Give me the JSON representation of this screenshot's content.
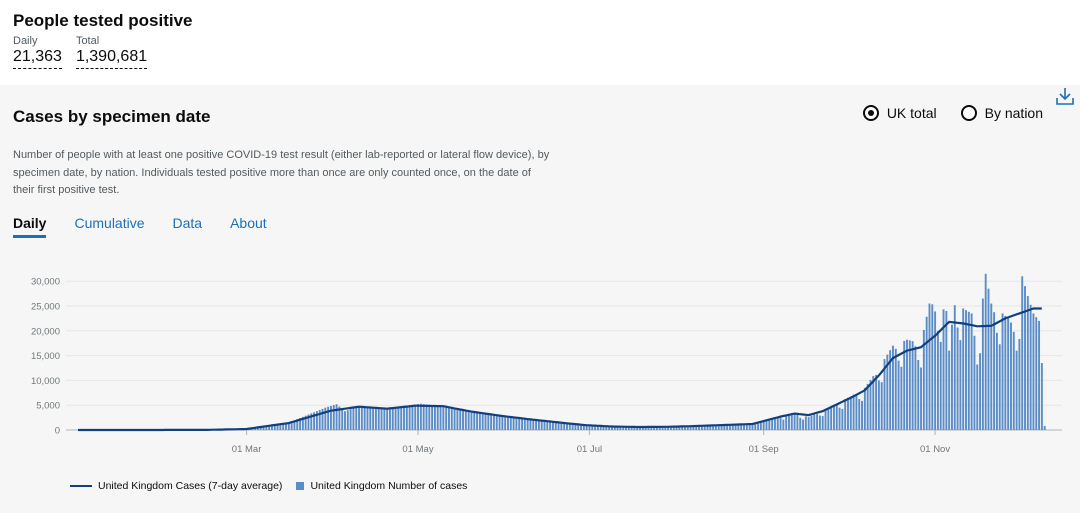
{
  "headline": {
    "title": "People tested positive",
    "daily_label": "Daily",
    "daily_value": "21,363",
    "total_label": "Total",
    "total_value": "1,390,681"
  },
  "card": {
    "title": "Cases by specimen date",
    "download_icon": "download-icon",
    "radio_uk": "UK total",
    "radio_nation": "By nation",
    "selected_radio": "UK total",
    "description": "Number of people with at least one positive COVID-19 test result (either lab-reported or lateral flow device), by specimen date, by nation. Individuals tested positive more than once are only counted once, on the date of their first positive test.",
    "tabs": [
      "Daily",
      "Cumulative",
      "Data",
      "About"
    ],
    "active_tab": "Daily"
  },
  "chart_data": {
    "type": "bar",
    "x_start": "2020-01-01",
    "x_ticks": [
      "01 Mar",
      "01 May",
      "01 Jul",
      "01 Sep",
      "01 Nov"
    ],
    "y_ticks": [
      "0",
      "5,000",
      "10,000",
      "15,000",
      "20,000",
      "25,000",
      "30,000"
    ],
    "ylim": [
      0,
      32000
    ],
    "bar_color": "#5a8cc7",
    "line_color": "#12407f",
    "legend": [
      "United Kingdom Cases (7-day average)",
      "United Kingdom Number of cases"
    ],
    "legend_position": "bottom-left",
    "avg_keypoints": [
      [
        0,
        0
      ],
      [
        45,
        15
      ],
      [
        60,
        200
      ],
      [
        75,
        1400
      ],
      [
        90,
        3900
      ],
      [
        100,
        4700
      ],
      [
        110,
        4300
      ],
      [
        120,
        4900
      ],
      [
        130,
        4800
      ],
      [
        140,
        3700
      ],
      [
        150,
        2900
      ],
      [
        160,
        2200
      ],
      [
        170,
        1600
      ],
      [
        180,
        1000
      ],
      [
        190,
        700
      ],
      [
        200,
        600
      ],
      [
        210,
        650
      ],
      [
        220,
        800
      ],
      [
        230,
        1000
      ],
      [
        240,
        1200
      ],
      [
        250,
        2700
      ],
      [
        255,
        3300
      ],
      [
        260,
        3000
      ],
      [
        265,
        3800
      ],
      [
        275,
        6500
      ],
      [
        280,
        8000
      ],
      [
        285,
        11000
      ],
      [
        290,
        14500
      ],
      [
        295,
        16000
      ],
      [
        300,
        16700
      ],
      [
        305,
        19000
      ],
      [
        310,
        21800
      ],
      [
        315,
        21500
      ],
      [
        320,
        20900
      ],
      [
        325,
        21000
      ],
      [
        330,
        22500
      ],
      [
        335,
        23500
      ],
      [
        340,
        24500
      ],
      [
        343,
        24500
      ]
    ],
    "bar_keypoints": [
      [
        0,
        0
      ],
      [
        45,
        20
      ],
      [
        60,
        200
      ],
      [
        75,
        1500
      ],
      [
        88,
        4500
      ],
      [
        92,
        5200
      ],
      [
        95,
        3800
      ],
      [
        100,
        4800
      ],
      [
        110,
        4500
      ],
      [
        118,
        5000
      ],
      [
        122,
        5300
      ],
      [
        130,
        4700
      ],
      [
        140,
        3500
      ],
      [
        150,
        2800
      ],
      [
        160,
        2100
      ],
      [
        170,
        1500
      ],
      [
        180,
        900
      ],
      [
        190,
        650
      ],
      [
        200,
        550
      ],
      [
        210,
        600
      ],
      [
        220,
        800
      ],
      [
        230,
        1050
      ],
      [
        240,
        1200
      ],
      [
        250,
        2800
      ],
      [
        255,
        3400
      ],
      [
        260,
        2600
      ],
      [
        265,
        3900
      ],
      [
        275,
        6800
      ],
      [
        280,
        8500
      ],
      [
        285,
        12500
      ],
      [
        290,
        17000
      ],
      [
        295,
        18200
      ],
      [
        300,
        17500
      ],
      [
        303,
        25500
      ],
      [
        306,
        25000
      ],
      [
        309,
        24000
      ],
      [
        310,
        16000
      ],
      [
        312,
        26500
      ],
      [
        315,
        24500
      ],
      [
        318,
        23500
      ],
      [
        320,
        16500
      ],
      [
        323,
        31500
      ],
      [
        325,
        25500
      ],
      [
        328,
        24000
      ],
      [
        331,
        22500
      ],
      [
        334,
        20000
      ],
      [
        336,
        31000
      ],
      [
        338,
        27000
      ],
      [
        340,
        23500
      ],
      [
        342,
        22000
      ],
      [
        343,
        13500
      ],
      [
        344,
        800
      ]
    ],
    "weekly_dip": [
      1,
      1,
      1,
      1,
      0.95,
      0.8,
      0.72
    ],
    "n_days": 345
  }
}
